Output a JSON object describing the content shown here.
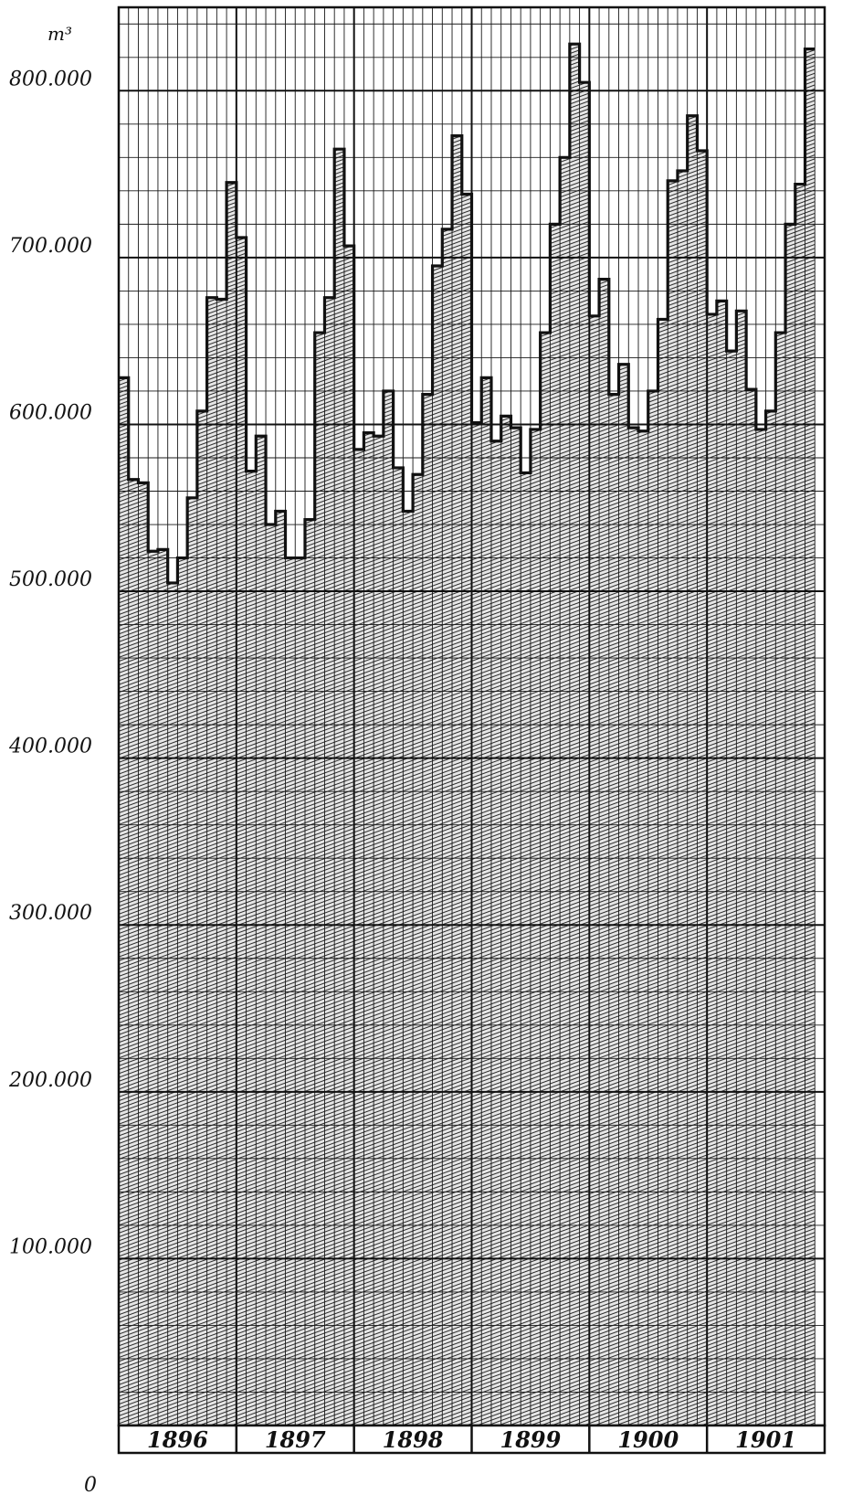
{
  "chart_data": {
    "type": "area",
    "step": true,
    "ylabel": "m³",
    "ylim": [
      0,
      850000
    ],
    "yticks": [
      0,
      100000,
      200000,
      300000,
      400000,
      500000,
      600000,
      700000,
      800000
    ],
    "ytick_labels": [
      "0",
      "100.000",
      "200.000",
      "300.000",
      "400.000",
      "500.000",
      "600.000",
      "700.000",
      "800.000"
    ],
    "years": [
      "1896",
      "1897",
      "1898",
      "1899",
      "1900",
      "1901"
    ],
    "months_per_year": 12,
    "grid": true,
    "values": [
      628000,
      567000,
      565000,
      524000,
      525000,
      505000,
      520000,
      556000,
      608000,
      676000,
      675000,
      745000,
      712000,
      572000,
      593000,
      540000,
      548000,
      520000,
      520000,
      543000,
      655000,
      676000,
      765000,
      707000,
      585000,
      595000,
      593000,
      620000,
      574000,
      548000,
      570000,
      618000,
      695000,
      717000,
      773000,
      738000,
      601000,
      628000,
      590000,
      605000,
      598000,
      571000,
      597000,
      655000,
      720000,
      760000,
      828000,
      805000,
      665000,
      687000,
      618000,
      636000,
      598000,
      596000,
      620000,
      663000,
      746000,
      752000,
      785000,
      764000,
      666000,
      674000,
      644000,
      668000,
      621000,
      597000,
      608000,
      655000,
      720000,
      744000,
      825000
    ],
    "colors": {
      "line": "#111111",
      "grid": "#1a1a1a",
      "fill_hatch": "#2a2a2a",
      "background": "#ffffff"
    }
  }
}
